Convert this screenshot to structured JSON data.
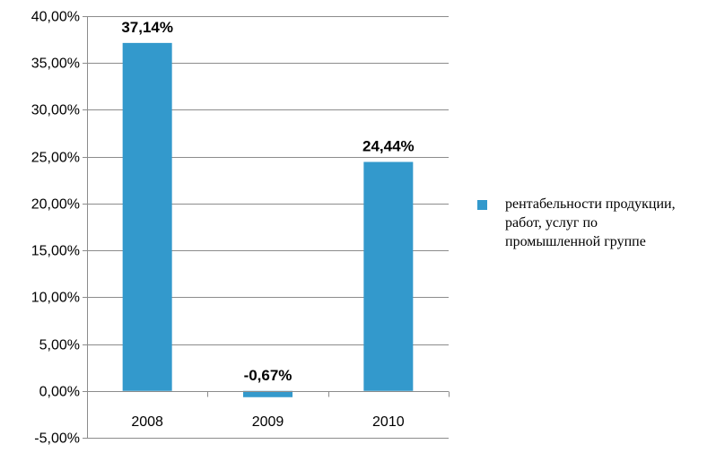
{
  "chart_data": {
    "type": "bar",
    "categories": [
      "2008",
      "2009",
      "2010"
    ],
    "series": [
      {
        "name": "рентабельности продукции, работ, услуг по промышленной группе",
        "values": [
          37.14,
          -0.67,
          24.44
        ],
        "data_labels": [
          "37,14%",
          "-0,67%",
          "24,44%"
        ],
        "color": "#3399cc"
      }
    ],
    "title": "",
    "xlabel": "",
    "ylabel": "",
    "ylim": [
      -5,
      40
    ],
    "yticks": [
      -5,
      0,
      5,
      10,
      15,
      20,
      25,
      30,
      35,
      40
    ],
    "ytick_labels": [
      "-5,00%",
      "0,00%",
      "5,00%",
      "10,00%",
      "15,00%",
      "20,00%",
      "25,00%",
      "30,00%",
      "35,00%",
      "40,00%"
    ],
    "grid": true,
    "legend_position": "right"
  }
}
